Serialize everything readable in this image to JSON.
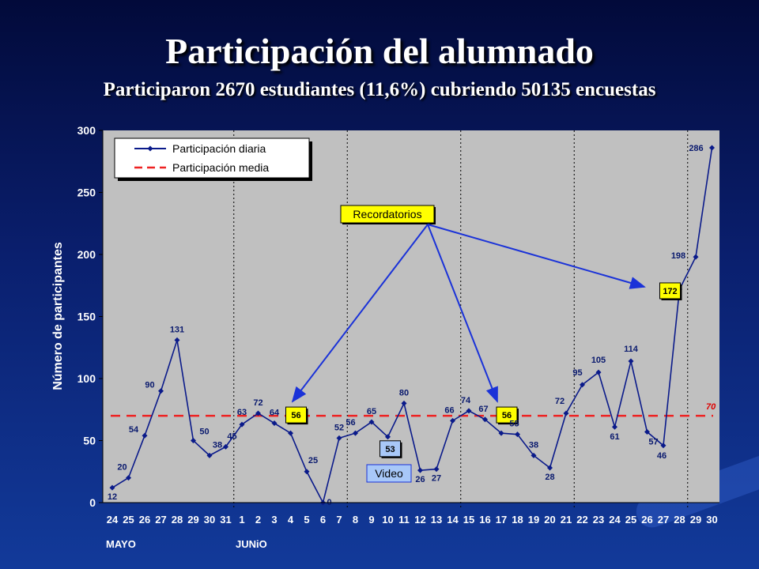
{
  "slide": {
    "title": "Participación del alumnado",
    "subtitle": "Participaron 2670 estudiantes (11,6%) cubriendo 50135 encuestas"
  },
  "chart_data": {
    "type": "line",
    "ylabel": "Número de participantes",
    "ylim": [
      0,
      300
    ],
    "yticks": [
      0,
      50,
      100,
      150,
      200,
      250,
      300
    ],
    "categories": [
      "24",
      "25",
      "26",
      "27",
      "28",
      "29",
      "30",
      "31",
      "1",
      "2",
      "3",
      "4",
      "5",
      "6",
      "7",
      "8",
      "9",
      "10",
      "11",
      "12",
      "13",
      "14",
      "15",
      "16",
      "17",
      "18",
      "19",
      "20",
      "21",
      "22",
      "23",
      "24",
      "25",
      "26",
      "27",
      "28",
      "29",
      "30"
    ],
    "month_labels": [
      {
        "text": "MAYO",
        "index": 0
      },
      {
        "text": "JUNiO",
        "index": 8
      }
    ],
    "week_separators_after_index": [
      7,
      14,
      21,
      28,
      35
    ],
    "series": [
      {
        "name": "Participación diaria",
        "color": "#0a1a8a",
        "values": [
          12,
          20,
          54,
          90,
          131,
          50,
          38,
          45,
          63,
          72,
          64,
          56,
          25,
          0,
          52,
          56,
          65,
          53,
          80,
          26,
          27,
          66,
          74,
          67,
          56,
          55,
          38,
          28,
          72,
          95,
          105,
          61,
          114,
          57,
          46,
          172,
          198,
          286
        ],
        "labels": [
          "12",
          "20",
          "54",
          "90",
          "131",
          "50",
          "38",
          "45",
          "63",
          "72",
          "64",
          "56",
          "25",
          "0",
          "52",
          "56",
          "65",
          "53",
          "80",
          "26",
          "27",
          "66",
          "74",
          "67",
          "56",
          "55",
          "38",
          "28",
          "72",
          "95",
          "105",
          "61",
          "114",
          "57",
          "46",
          "172",
          "198",
          "286"
        ]
      },
      {
        "name": "Participación media",
        "color": "#ee2222",
        "mean": 70,
        "label": "70"
      }
    ],
    "highlighted_labels": [
      11,
      17,
      24,
      35
    ],
    "annotations": [
      {
        "text": "Recordatorios",
        "arrows_to_index": [
          11,
          24,
          34
        ]
      },
      {
        "text": "Video",
        "index": 17
      }
    ],
    "grid": false,
    "legend": "top-left",
    "colors": {
      "plot_bg": "#c0c0c0",
      "label_highlight": "#ffff00",
      "video_box": "#a8c8f8",
      "arrow": "#1a32d8"
    }
  }
}
